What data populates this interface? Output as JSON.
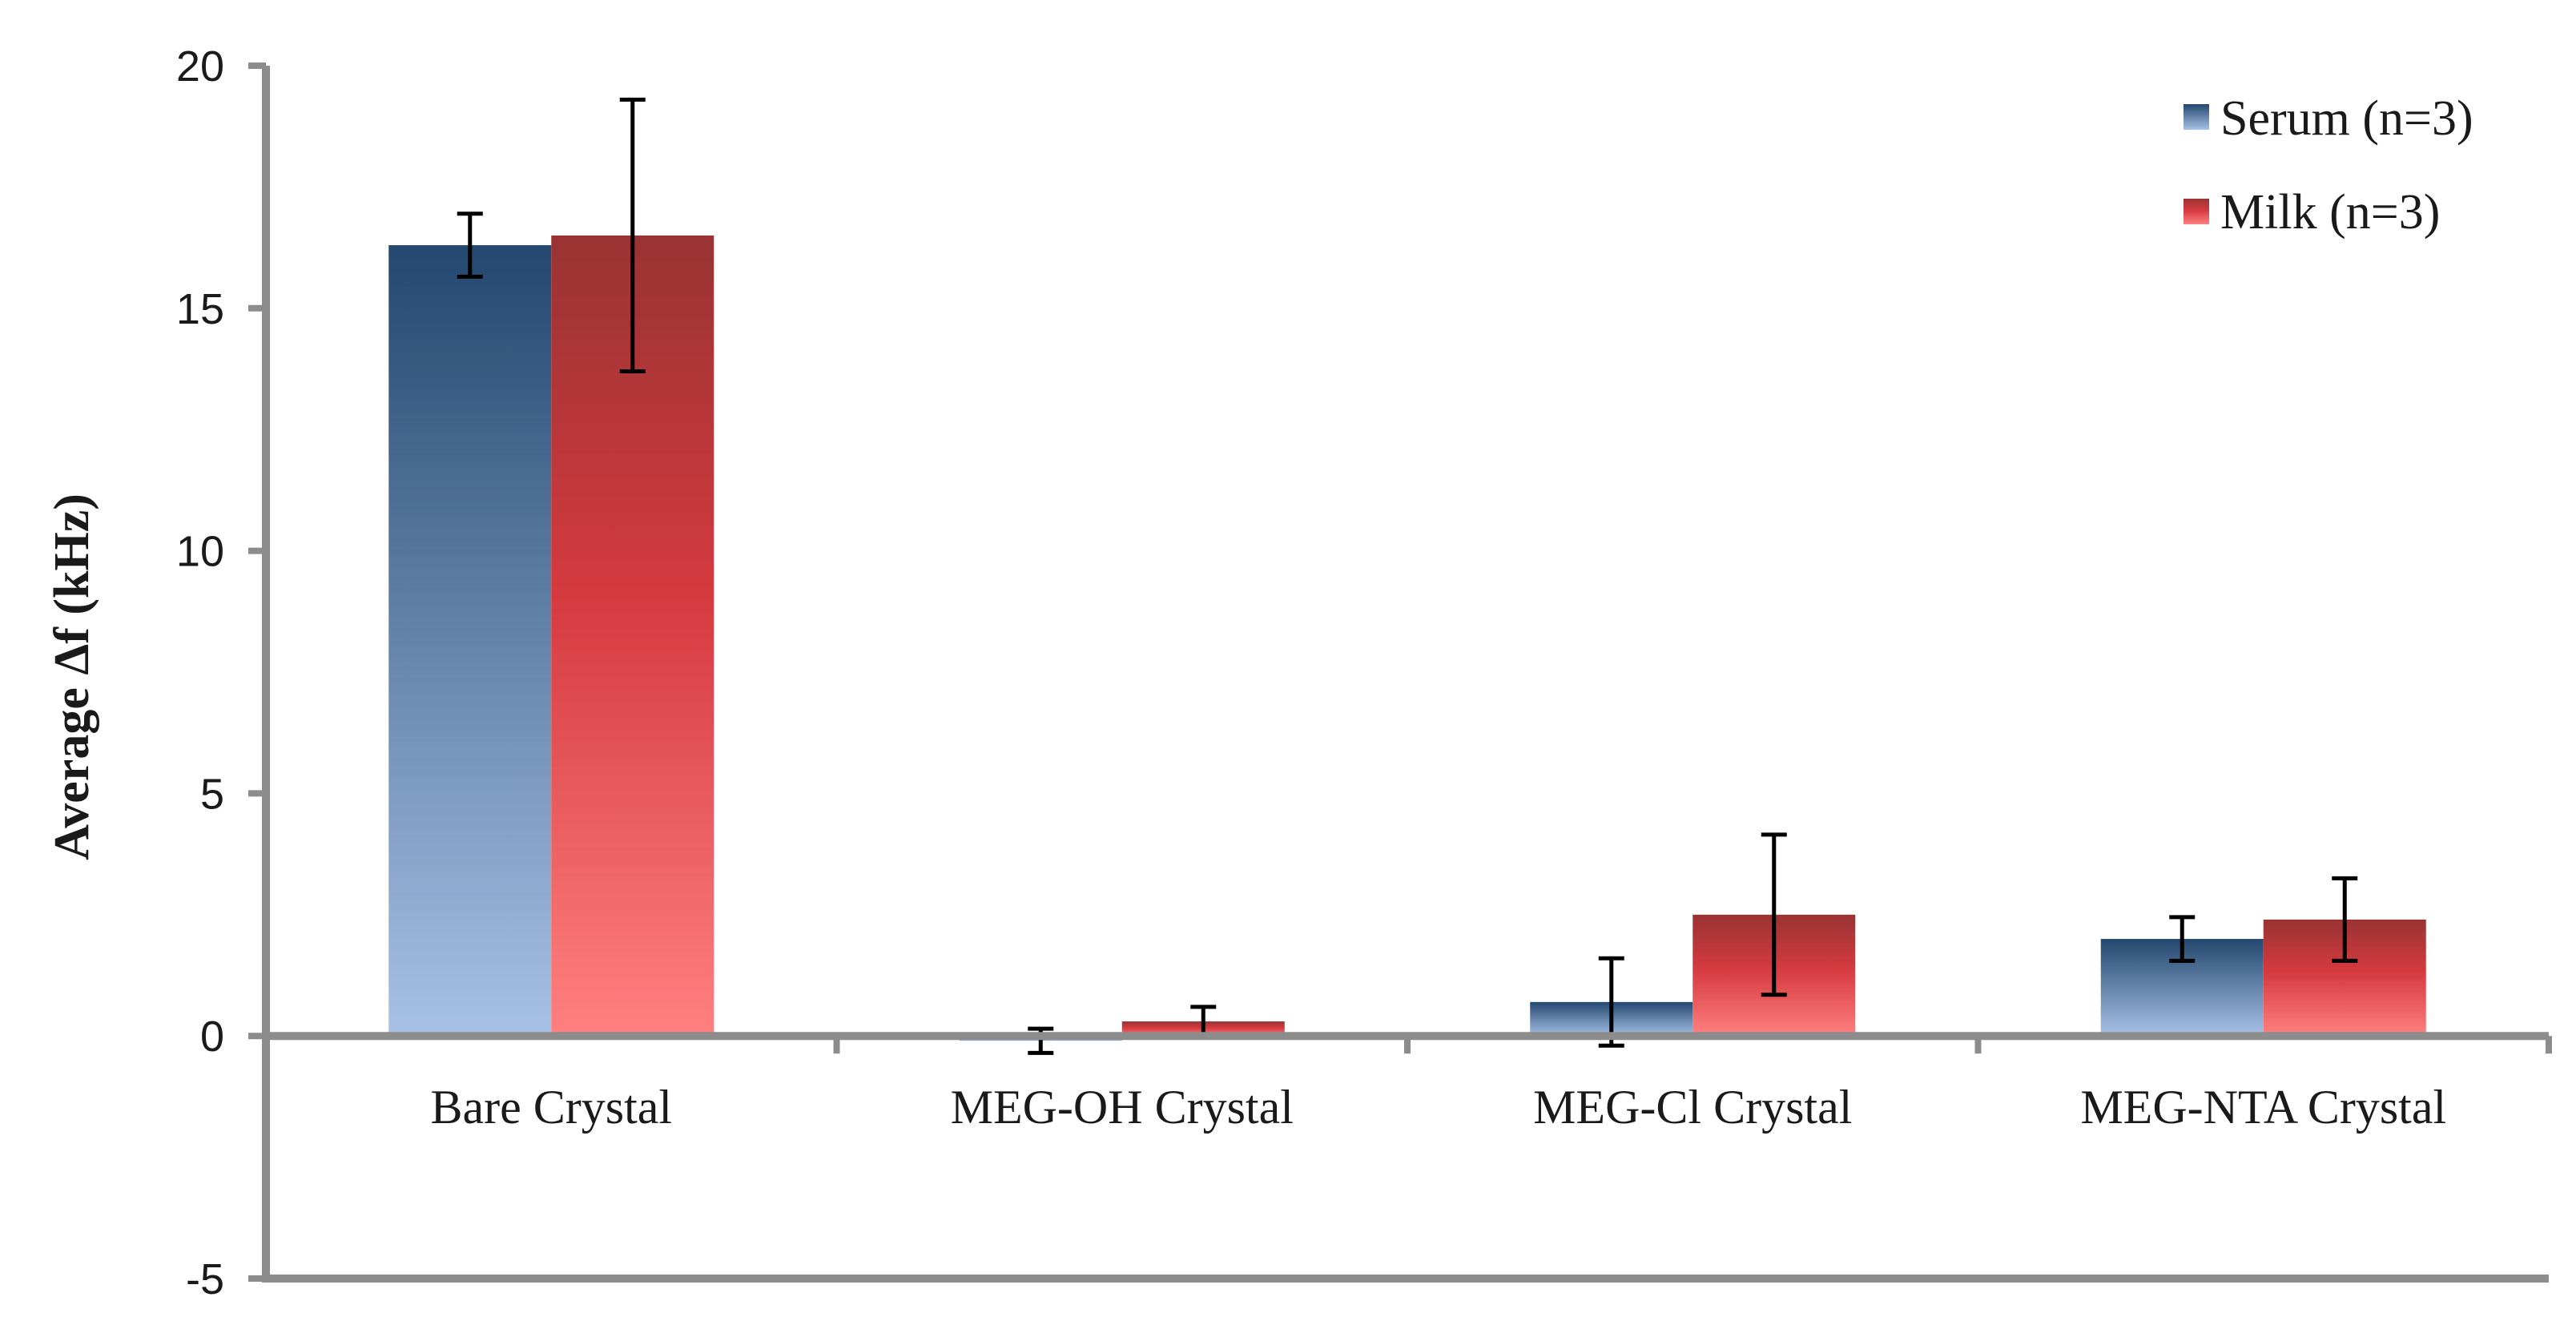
{
  "chart_data": {
    "type": "bar",
    "title": "",
    "xlabel": "",
    "ylabel": "Average Δf (kHz)",
    "ylim": [
      -5,
      20
    ],
    "yticks": [
      "20",
      "15",
      "10",
      "5",
      "0",
      "-5"
    ],
    "ytick_values": [
      20,
      15,
      10,
      5,
      0,
      -5
    ],
    "categories": [
      "Bare Crystal",
      "MEG-OH Crystal",
      "MEG-Cl Crystal",
      "MEG-NTA Crystal"
    ],
    "series": [
      {
        "name": "Serum (n=3)",
        "values": [
          16.3,
          -0.1,
          0.7,
          2.0
        ],
        "errors": [
          0.65,
          0.25,
          0.9,
          0.45
        ],
        "color_top": "#23476f",
        "color_bottom": "#a8c1e6"
      },
      {
        "name": "Milk (n=3)",
        "values": [
          16.5,
          0.3,
          2.5,
          2.4
        ],
        "errors": [
          2.8,
          0.3,
          1.65,
          0.85
        ],
        "color_top": "#993333",
        "color_mid": "#d53a3f",
        "color_bottom": "#ff8080"
      }
    ],
    "legend": {
      "position": "top-right",
      "entries": [
        "Serum (n=3)",
        "Milk (n=3)"
      ]
    },
    "grid": false
  }
}
